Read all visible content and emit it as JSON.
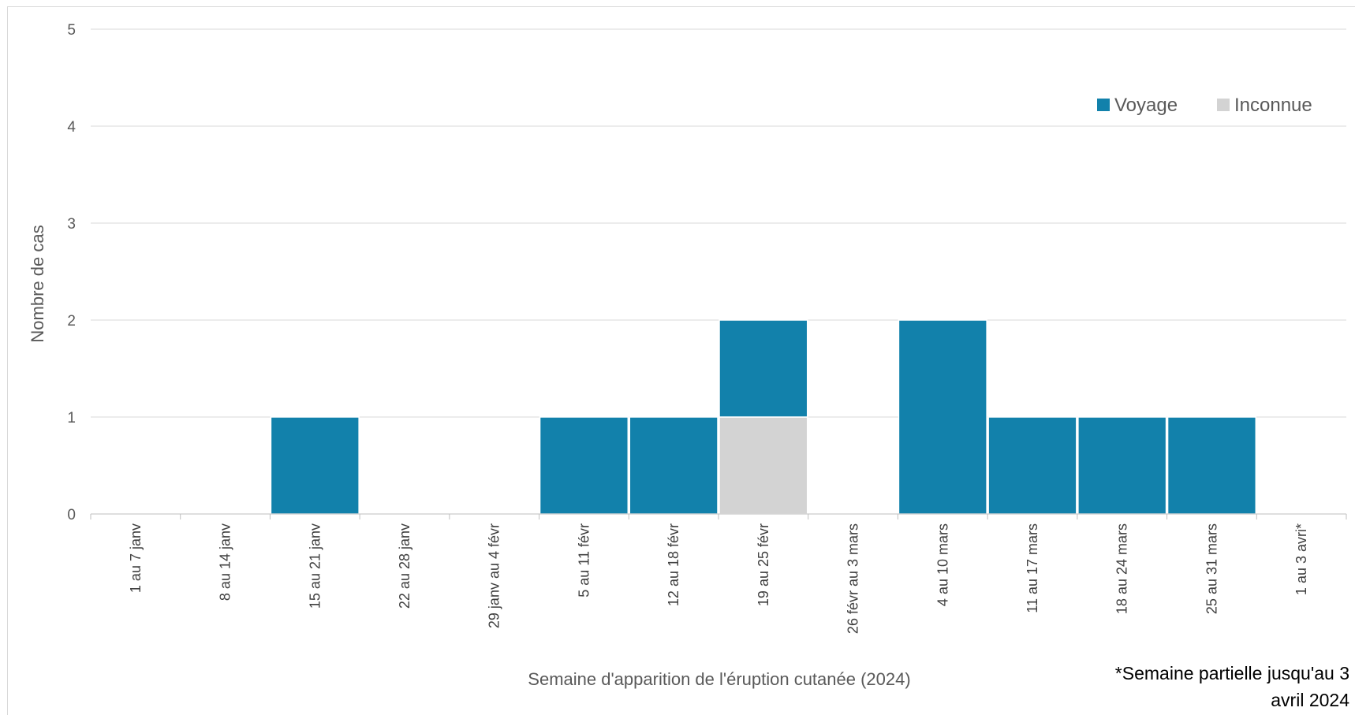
{
  "chart_data": {
    "type": "bar",
    "stacked": true,
    "categories": [
      "1 au 7 janv",
      "8 au 14 janv",
      "15 au 21 janv",
      "22 au 28 janv",
      "29 janv au 4 févr",
      "5 au 11 févr",
      "12 au 18 févr",
      "19 au 25 févr",
      "26 févr au 3 mars",
      "4 au 10 mars",
      "11 au 17 mars",
      "18 au 24 mars",
      "25 au 31 mars",
      "1 au 3 avri*"
    ],
    "series": [
      {
        "name": "Inconnue",
        "color": "#d3d3d3",
        "values": [
          0,
          0,
          0,
          0,
          0,
          0,
          0,
          1,
          0,
          0,
          0,
          0,
          0,
          0
        ]
      },
      {
        "name": "Voyage",
        "color": "#1281ab",
        "values": [
          0,
          0,
          1,
          0,
          0,
          1,
          1,
          1,
          0,
          2,
          1,
          1,
          1,
          0
        ]
      }
    ],
    "legend_order": [
      "Voyage",
      "Inconnue"
    ],
    "ylim": [
      0,
      5
    ],
    "yticks": [
      0,
      1,
      2,
      3,
      4,
      5
    ],
    "xlabel": "Semaine d'apparition de l'éruption cutanée (2024)",
    "ylabel": "Nombre de cas",
    "grid": true,
    "legend_position": "top-right",
    "footnote_lines": [
      "*Semaine partielle jusqu'au 3",
      "avril 2024"
    ],
    "colors": {
      "gridline": "#d9d9d9",
      "axis": "#bfbfbf"
    }
  }
}
